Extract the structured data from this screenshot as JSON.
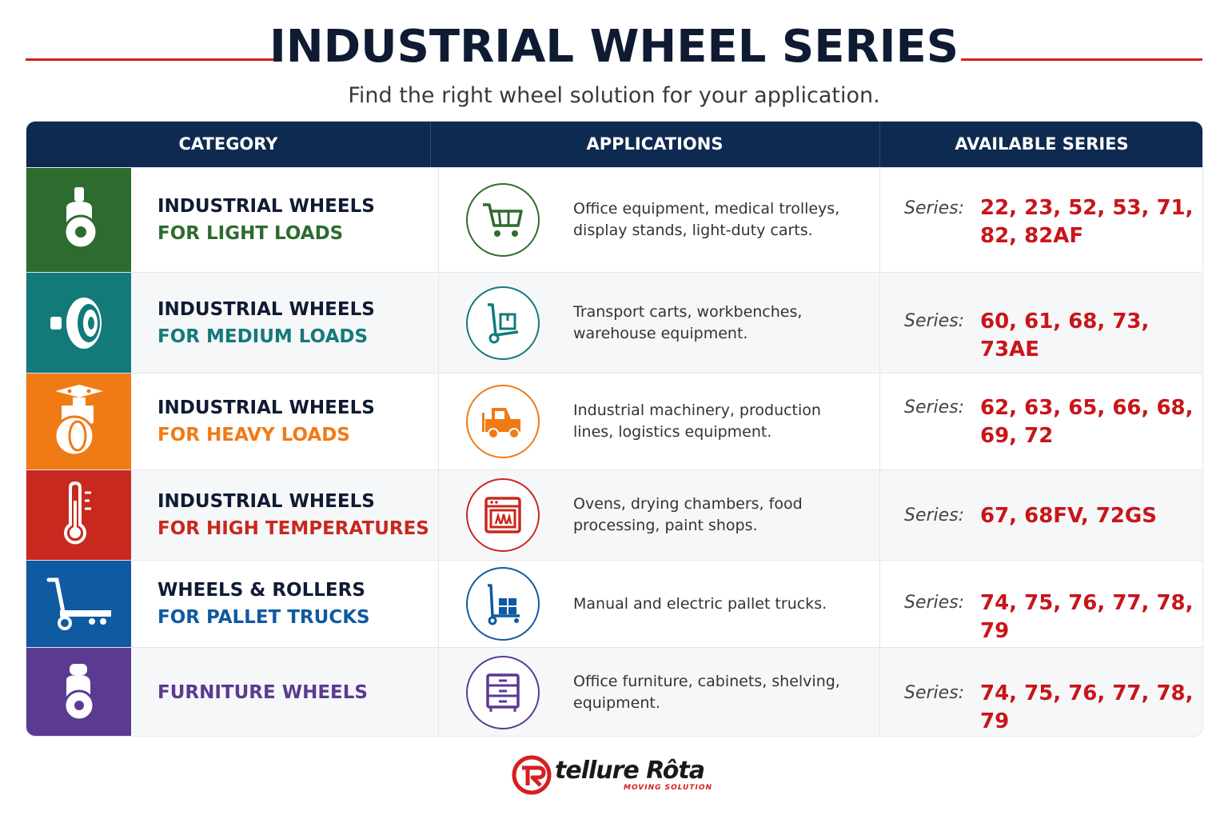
{
  "header": {
    "title": "INDUSTRIAL WHEEL SERIES",
    "subtitle": "Find the right wheel solution for your application."
  },
  "table": {
    "columns": [
      "CATEGORY",
      "APPLICATIONS",
      "AVAILABLE SERIES"
    ],
    "series_label": "Series:",
    "rows": [
      {
        "line1": "INDUSTRIAL WHEELS",
        "line2": "FOR LIGHT LOADS",
        "applications": "Office equipment, medical trolleys, display stands, light-duty carts.",
        "series": "22, 23, 52, 53, 71, 82, 82AF",
        "color": "#2e6b2f",
        "category_icon": "caster-wheel-icon",
        "application_icon": "shopping-cart-icon"
      },
      {
        "line1": "INDUSTRIAL WHEELS",
        "line2": "FOR MEDIUM LOADS",
        "applications": "Transport carts, workbenches, warehouse equipment.",
        "series": "60, 61, 68, 73, 73AE",
        "color": "#137a7a",
        "category_icon": "wheel-side-icon",
        "application_icon": "hand-truck-icon"
      },
      {
        "line1": "INDUSTRIAL WHEELS",
        "line2": "FOR HEAVY LOADS",
        "applications": "Industrial machinery, production lines, logistics equipment.",
        "series": "62, 63, 65, 66, 68, 69, 72",
        "color": "#f07a14",
        "category_icon": "plate-caster-icon",
        "application_icon": "forklift-icon"
      },
      {
        "line1": "INDUSTRIAL WHEELS",
        "line2": "FOR HIGH TEMPERATURES",
        "applications": "Ovens, drying chambers, food processing, paint shops.",
        "series": "67, 68FV, 72GS",
        "color": "#c8281e",
        "category_icon": "thermometer-icon",
        "application_icon": "oven-icon"
      },
      {
        "line1": "WHEELS & ROLLERS",
        "line2": "FOR PALLET TRUCKS",
        "applications": "Manual and electric pallet trucks.",
        "series": "74, 75, 76, 77, 78, 79",
        "color": "#0f5aa0",
        "category_icon": "pallet-truck-icon",
        "application_icon": "pallet-jack-icon"
      },
      {
        "line1": "",
        "line2": "FURNITURE WHEELS",
        "applications": "Office furniture, cabinets, shelving, equipment.",
        "series": "74, 75, 76, 77, 78, 79",
        "color": "#5b3a91",
        "category_icon": "furniture-caster-icon",
        "application_icon": "cabinet-icon"
      }
    ]
  },
  "footer": {
    "brand": "tellure Rôta",
    "tagline": "MOVING SOLUTION",
    "brand_color": "#d42020"
  }
}
